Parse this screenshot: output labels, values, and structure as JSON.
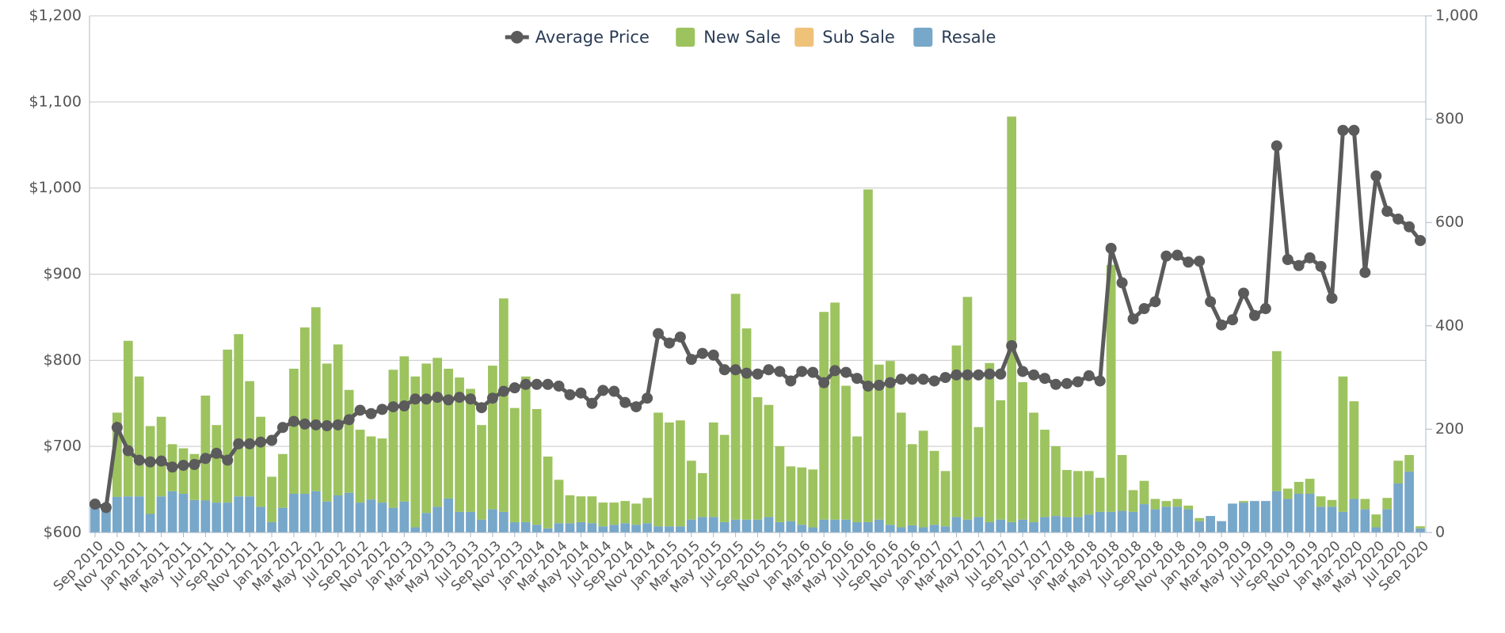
{
  "chart_data": {
    "type": "bar",
    "categories": [
      "Sep 2010",
      null,
      "Nov 2010",
      null,
      "Jan 2011",
      null,
      "Mar 2011",
      null,
      "May 2011",
      null,
      "Jul 2011",
      null,
      "Sep 2011",
      null,
      "Nov 2011",
      null,
      "Jan 2012",
      null,
      "Mar 2012",
      null,
      "May 2012",
      null,
      "Jul 2012",
      null,
      "Sep 2012",
      null,
      "Nov 2012",
      null,
      "Jan 2013",
      null,
      "Mar 2013",
      null,
      "May 2013",
      null,
      "Jul 2013",
      null,
      "Sep 2013",
      null,
      "Nov 2013",
      null,
      "Jan 2014",
      null,
      "Mar 2014",
      null,
      "May 2014",
      null,
      "Jul 2014",
      null,
      "Sep 2014",
      null,
      "Nov 2014",
      null,
      "Jan 2015",
      null,
      "Mar 2015",
      null,
      "May 2015",
      null,
      "Jul 2015",
      null,
      "Sep 2015",
      null,
      "Nov 2015",
      null,
      "Jan 2016",
      null,
      "Mar 2016",
      null,
      "May 2016",
      null,
      "Jul 2016",
      null,
      "Sep 2016",
      null,
      "Nov 2016",
      null,
      "Jan 2017",
      null,
      "Mar 2017",
      null,
      "May 2017",
      null,
      "Jul 2017",
      null,
      "Sep 2017",
      null,
      "Nov 2017",
      null,
      "Jan 2018",
      null,
      "Mar 2018",
      null,
      "May 2018",
      null,
      "Jul 2018",
      null,
      "Sep 2018",
      null,
      "Nov 2018",
      null,
      "Jan 2019",
      null,
      "Mar 2019",
      null,
      "May 2019",
      null,
      "Jul 2019",
      null,
      "Sep 2019",
      null,
      "Nov 2019",
      null,
      "Jan 2020",
      null,
      "Mar 2020",
      null,
      "May 2020",
      null,
      "Jul 2020",
      null,
      "Sep 2020"
    ],
    "series": [
      {
        "name": "Average Price",
        "type": "line",
        "axis": "y",
        "color": "#5b5b5b",
        "values": [
          633,
          629,
          722,
          695,
          684,
          682,
          683,
          676,
          678,
          679,
          686,
          692,
          684,
          703,
          703,
          705,
          707,
          722,
          729,
          726,
          725,
          724,
          725,
          731,
          742,
          738,
          743,
          746,
          747,
          755,
          755,
          757,
          754,
          757,
          755,
          745,
          756,
          764,
          768,
          772,
          772,
          772,
          770,
          760,
          762,
          750,
          765,
          764,
          751,
          746,
          756,
          831,
          820,
          827,
          801,
          808,
          806,
          789,
          789,
          785,
          784,
          789,
          787,
          776,
          787,
          786,
          774,
          788,
          786,
          779,
          770,
          771,
          774,
          778,
          778,
          778,
          776,
          780,
          783,
          783,
          783,
          784,
          784,
          817,
          787,
          783,
          779,
          772,
          773,
          775,
          782,
          776,
          930,
          890,
          848,
          860,
          868,
          921,
          922,
          914,
          915,
          868,
          841,
          847,
          878,
          852,
          860,
          1049,
          917,
          910,
          919,
          909,
          872,
          1067,
          1067,
          902,
          1014,
          973,
          964,
          955,
          939
        ]
      },
      {
        "name": "New Sale",
        "type": "bar",
        "axis": "y2",
        "color": "#9dc35f",
        "values": [
          0,
          0,
          163,
          301,
          232,
          170,
          154,
          91,
          88,
          89,
          203,
          150,
          296,
          314,
          223,
          174,
          88,
          104,
          242,
          322,
          356,
          267,
          292,
          199,
          141,
          122,
          124,
          267,
          281,
          292,
          289,
          288,
          251,
          260,
          238,
          183,
          278,
          413,
          221,
          282,
          224,
          139,
          84,
          54,
          50,
          52,
          46,
          43,
          43,
          41,
          49,
          220,
          201,
          205,
          114,
          85,
          183,
          169,
          437,
          370,
          237,
          217,
          147,
          106,
          111,
          112,
          402,
          420,
          259,
          166,
          644,
          300,
          317,
          222,
          157,
          187,
          143,
          107,
          332,
          431,
          174,
          308,
          231,
          785,
          266,
          212,
          169,
          135,
          91,
          89,
          84,
          66,
          478,
          108,
          42,
          45,
          20,
          11,
          15,
          7,
          6,
          0,
          0,
          0,
          3,
          0,
          0,
          271,
          20,
          23,
          29,
          20,
          13,
          262,
          189,
          20,
          25,
          22,
          44,
          32,
          4
        ]
      },
      {
        "name": "Sub Sale",
        "type": "bar",
        "axis": "y2",
        "color": "#efc27a",
        "values": [
          0,
          0,
          0,
          0,
          0,
          0,
          0,
          0,
          0,
          0,
          0,
          0,
          0,
          0,
          0,
          0,
          0,
          0,
          0,
          0,
          0,
          0,
          0,
          0,
          0,
          0,
          0,
          0,
          0,
          0,
          0,
          0,
          0,
          0,
          0,
          0,
          0,
          0,
          0,
          0,
          0,
          0,
          0,
          0,
          0,
          0,
          0,
          0,
          0,
          0,
          0,
          0,
          0,
          0,
          0,
          0,
          0,
          0,
          0,
          0,
          0,
          0,
          0,
          0,
          0,
          0,
          0,
          0,
          0,
          0,
          0,
          0,
          0,
          0,
          0,
          0,
          0,
          0,
          0,
          0,
          0,
          0,
          0,
          0,
          0,
          0,
          0,
          0,
          0,
          0,
          0,
          0,
          0,
          0,
          0,
          0,
          0,
          0,
          0,
          0,
          0,
          0,
          0,
          0,
          0,
          0,
          0,
          0,
          0,
          0,
          0,
          0,
          0,
          0,
          0,
          0,
          0,
          0,
          0,
          0,
          0
        ]
      },
      {
        "name": "Resale",
        "type": "bar",
        "axis": "y2",
        "color": "#77a7c9",
        "values": [
          50,
          55,
          69,
          70,
          70,
          36,
          70,
          80,
          75,
          63,
          62,
          58,
          58,
          70,
          70,
          50,
          20,
          48,
          75,
          75,
          80,
          60,
          72,
          77,
          58,
          64,
          58,
          48,
          60,
          10,
          38,
          50,
          66,
          40,
          40,
          25,
          45,
          40,
          20,
          20,
          15,
          8,
          18,
          18,
          20,
          18,
          12,
          15,
          18,
          15,
          18,
          12,
          12,
          12,
          25,
          30,
          30,
          20,
          25,
          25,
          25,
          30,
          20,
          22,
          15,
          10,
          25,
          25,
          25,
          20,
          20,
          25,
          15,
          10,
          14,
          10,
          15,
          12,
          30,
          25,
          30,
          20,
          25,
          20,
          25,
          20,
          30,
          32,
          30,
          30,
          35,
          40,
          40,
          42,
          40,
          55,
          45,
          50,
          50,
          45,
          22,
          32,
          22,
          56,
          58,
          61,
          61,
          80,
          65,
          75,
          75,
          50,
          50,
          40,
          65,
          45,
          10,
          45,
          95,
          118,
          8
        ]
      }
    ],
    "ylim": [
      600,
      1200
    ],
    "yticks": [
      {
        "value": 600,
        "label": "$600"
      },
      {
        "value": 700,
        "label": "$700"
      },
      {
        "value": 800,
        "label": "$800"
      },
      {
        "value": 900,
        "label": "$900"
      },
      {
        "value": 1000,
        "label": "$1,000"
      },
      {
        "value": 1100,
        "label": "$1,100"
      },
      {
        "value": 1200,
        "label": "$1,200"
      }
    ],
    "y2lim": [
      0,
      1000
    ],
    "y2ticks": [
      0,
      200,
      400,
      600,
      800,
      {
        "value": 1000,
        "label": "1,000"
      }
    ],
    "grid": true,
    "legend": "top"
  }
}
